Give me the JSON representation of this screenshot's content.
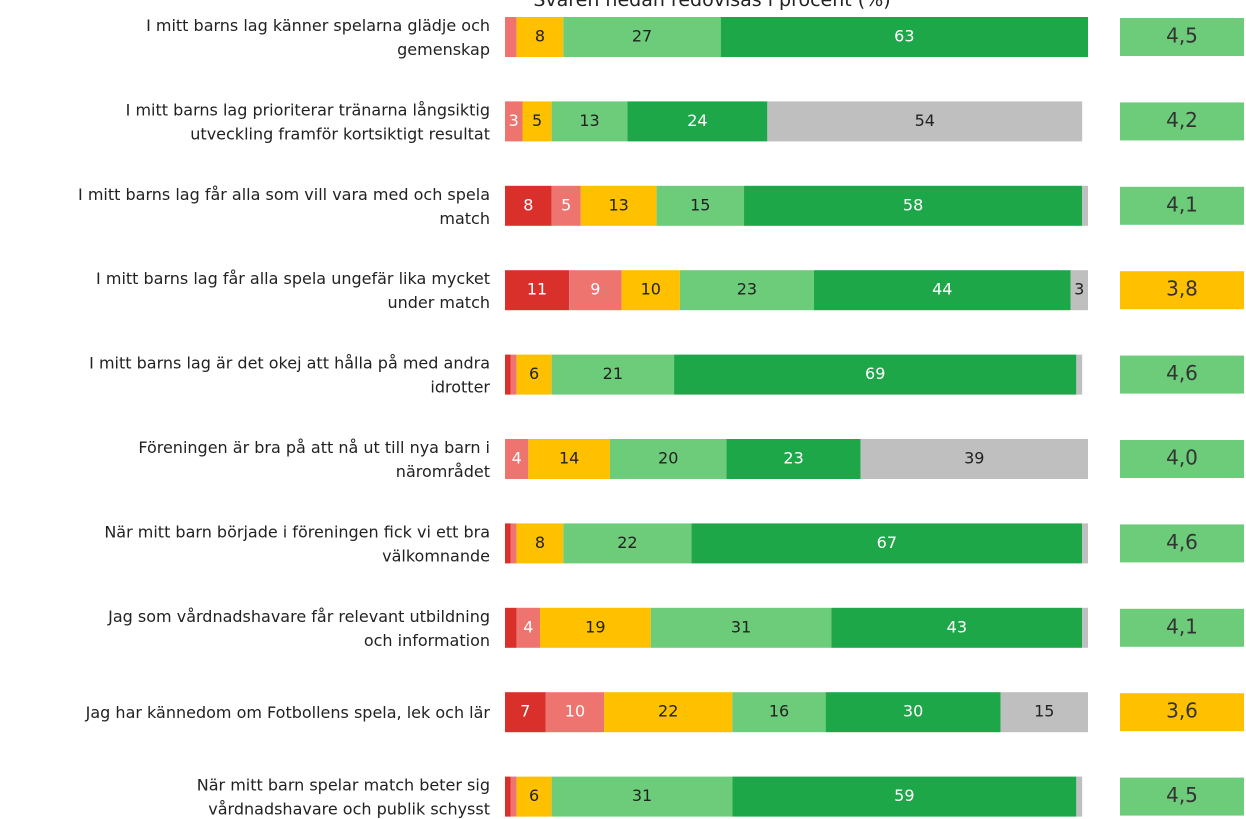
{
  "chart_data": {
    "type": "stacked-bar",
    "orientation": "horizontal",
    "title": "Svaren nedan redovisas i procent (%)",
    "categories": [
      [
        "I mitt barns lag känner spelarna glädje och",
        "gemenskap"
      ],
      [
        "I mitt barns lag prioriterar tränarna långsiktig",
        "utveckling framför kortsiktigt resultat"
      ],
      [
        "I mitt barns lag får alla som vill vara med och spela",
        "match"
      ],
      [
        "I mitt barns lag får alla spela ungefär lika mycket",
        "under match"
      ],
      [
        "I mitt barns lag är det okej att hålla på med andra",
        "idrotter"
      ],
      [
        "Föreningen är bra på att nå ut till nya barn i",
        "närområdet"
      ],
      [
        "När mitt barn började i föreningen fick vi ett bra",
        "välkomnande"
      ],
      [
        "Jag som vårdnadshavare får relevant utbildning",
        "och information"
      ],
      [
        "Jag har kännedom om Fotbollens spela, lek och lär"
      ],
      [
        "När mitt barn spelar match beter sig",
        "vårdnadshavare och publik schysst"
      ]
    ],
    "xlim": [
      0,
      100
    ],
    "series": [
      {
        "color": "#d9302c",
        "label_color": "#ffffff",
        "values": [
          0,
          0,
          8,
          11,
          1,
          0,
          1,
          2,
          7,
          1
        ]
      },
      {
        "color": "#ee7470",
        "label_color": "#ffffff",
        "values": [
          2,
          3,
          5,
          9,
          1,
          4,
          1,
          4,
          10,
          1
        ]
      },
      {
        "color": "#ffc000",
        "label_color": "#222222",
        "values": [
          8,
          5,
          13,
          10,
          6,
          14,
          8,
          19,
          22,
          6
        ]
      },
      {
        "color": "#6dcc7a",
        "label_color": "#222222",
        "values": [
          27,
          13,
          15,
          23,
          21,
          20,
          22,
          31,
          16,
          31
        ]
      },
      {
        "color": "#1ea748",
        "label_color": "#ffffff",
        "values": [
          63,
          24,
          58,
          44,
          69,
          23,
          67,
          43,
          30,
          59
        ]
      },
      {
        "color": "#bfbfbf",
        "label_color": "#222222",
        "values": [
          0,
          54,
          1,
          3,
          1,
          39,
          1,
          1,
          15,
          1
        ]
      }
    ],
    "scores": [
      {
        "value": 4.5,
        "label": "4,5",
        "color": "#6dcc7a"
      },
      {
        "value": 4.2,
        "label": "4,2",
        "color": "#6dcc7a"
      },
      {
        "value": 4.1,
        "label": "4,1",
        "color": "#6dcc7a"
      },
      {
        "value": 3.8,
        "label": "3,8",
        "color": "#ffc000"
      },
      {
        "value": 4.6,
        "label": "4,6",
        "color": "#6dcc7a"
      },
      {
        "value": 4.0,
        "label": "4,0",
        "color": "#6dcc7a"
      },
      {
        "value": 4.6,
        "label": "4,6",
        "color": "#6dcc7a"
      },
      {
        "value": 4.1,
        "label": "4,1",
        "color": "#6dcc7a"
      },
      {
        "value": 3.6,
        "label": "3,6",
        "color": "#ffc000"
      },
      {
        "value": 4.5,
        "label": "4,5",
        "color": "#6dcc7a"
      }
    ]
  }
}
